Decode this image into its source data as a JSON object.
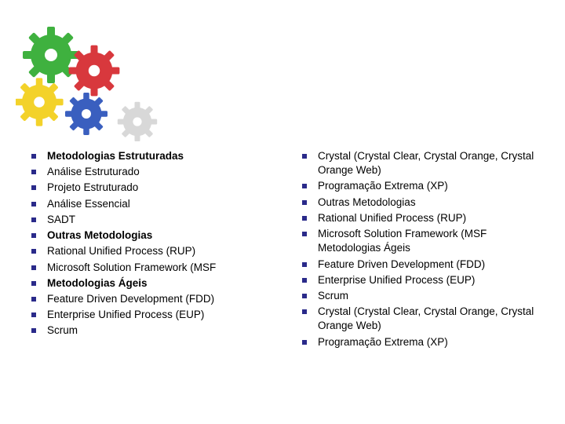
{
  "gears": {
    "colors": {
      "green": "#3fb13f",
      "red": "#d8383d",
      "yellow": "#f3d22a",
      "blue": "#3a5fbf",
      "light": "#d8d8d8"
    }
  },
  "typography": {
    "font_family": "Verdana, Geneva, sans-serif",
    "item_fontsize": 13.5,
    "text_color": "#000000",
    "bullet_color": "#2a2a8a",
    "bullet_size": 6
  },
  "background_color": "#ffffff",
  "left": {
    "items": [
      {
        "text": "Metodologias Estruturadas",
        "bold": true
      },
      {
        "text": "Análise Estruturado",
        "bold": false
      },
      {
        "text": "Projeto Estruturado",
        "bold": false
      },
      {
        "text": "Análise Essencial",
        "bold": false
      },
      {
        "text": "SADT",
        "bold": false
      },
      {
        "text": "Outras Metodologias",
        "bold": true
      },
      {
        "text": "Rational Unified Process (RUP)",
        "bold": false
      },
      {
        "text": "Microsoft Solution Framework (MSF",
        "bold": false
      },
      {
        "text": "Metodologias Ágeis",
        "bold": true
      },
      {
        "text": "Feature Driven Development (FDD)",
        "bold": false
      },
      {
        "text": "Enterprise Unified Process (EUP)",
        "bold": false
      },
      {
        "text": "Scrum",
        "bold": false
      }
    ]
  },
  "right": {
    "items": [
      {
        "text": "Crystal (Crystal Clear, Crystal Orange, Crystal Orange Web)",
        "bold": false
      },
      {
        "text": "Programação Extrema (XP)",
        "bold": false
      },
      {
        "text": "Outras Metodologias",
        "bold": false
      },
      {
        "text": "Rational Unified Process (RUP)",
        "bold": false
      },
      {
        "text": "Microsoft Solution Framework (MSF Metodologias Ágeis",
        "bold": false
      },
      {
        "text": "Feature Driven Development (FDD)",
        "bold": false
      },
      {
        "text": "Enterprise Unified Process (EUP)",
        "bold": false
      },
      {
        "text": "Scrum",
        "bold": false
      },
      {
        "text": "Crystal (Crystal Clear, Crystal Orange, Crystal Orange Web)",
        "bold": false
      },
      {
        "text": "Programação Extrema (XP)",
        "bold": false
      }
    ]
  }
}
